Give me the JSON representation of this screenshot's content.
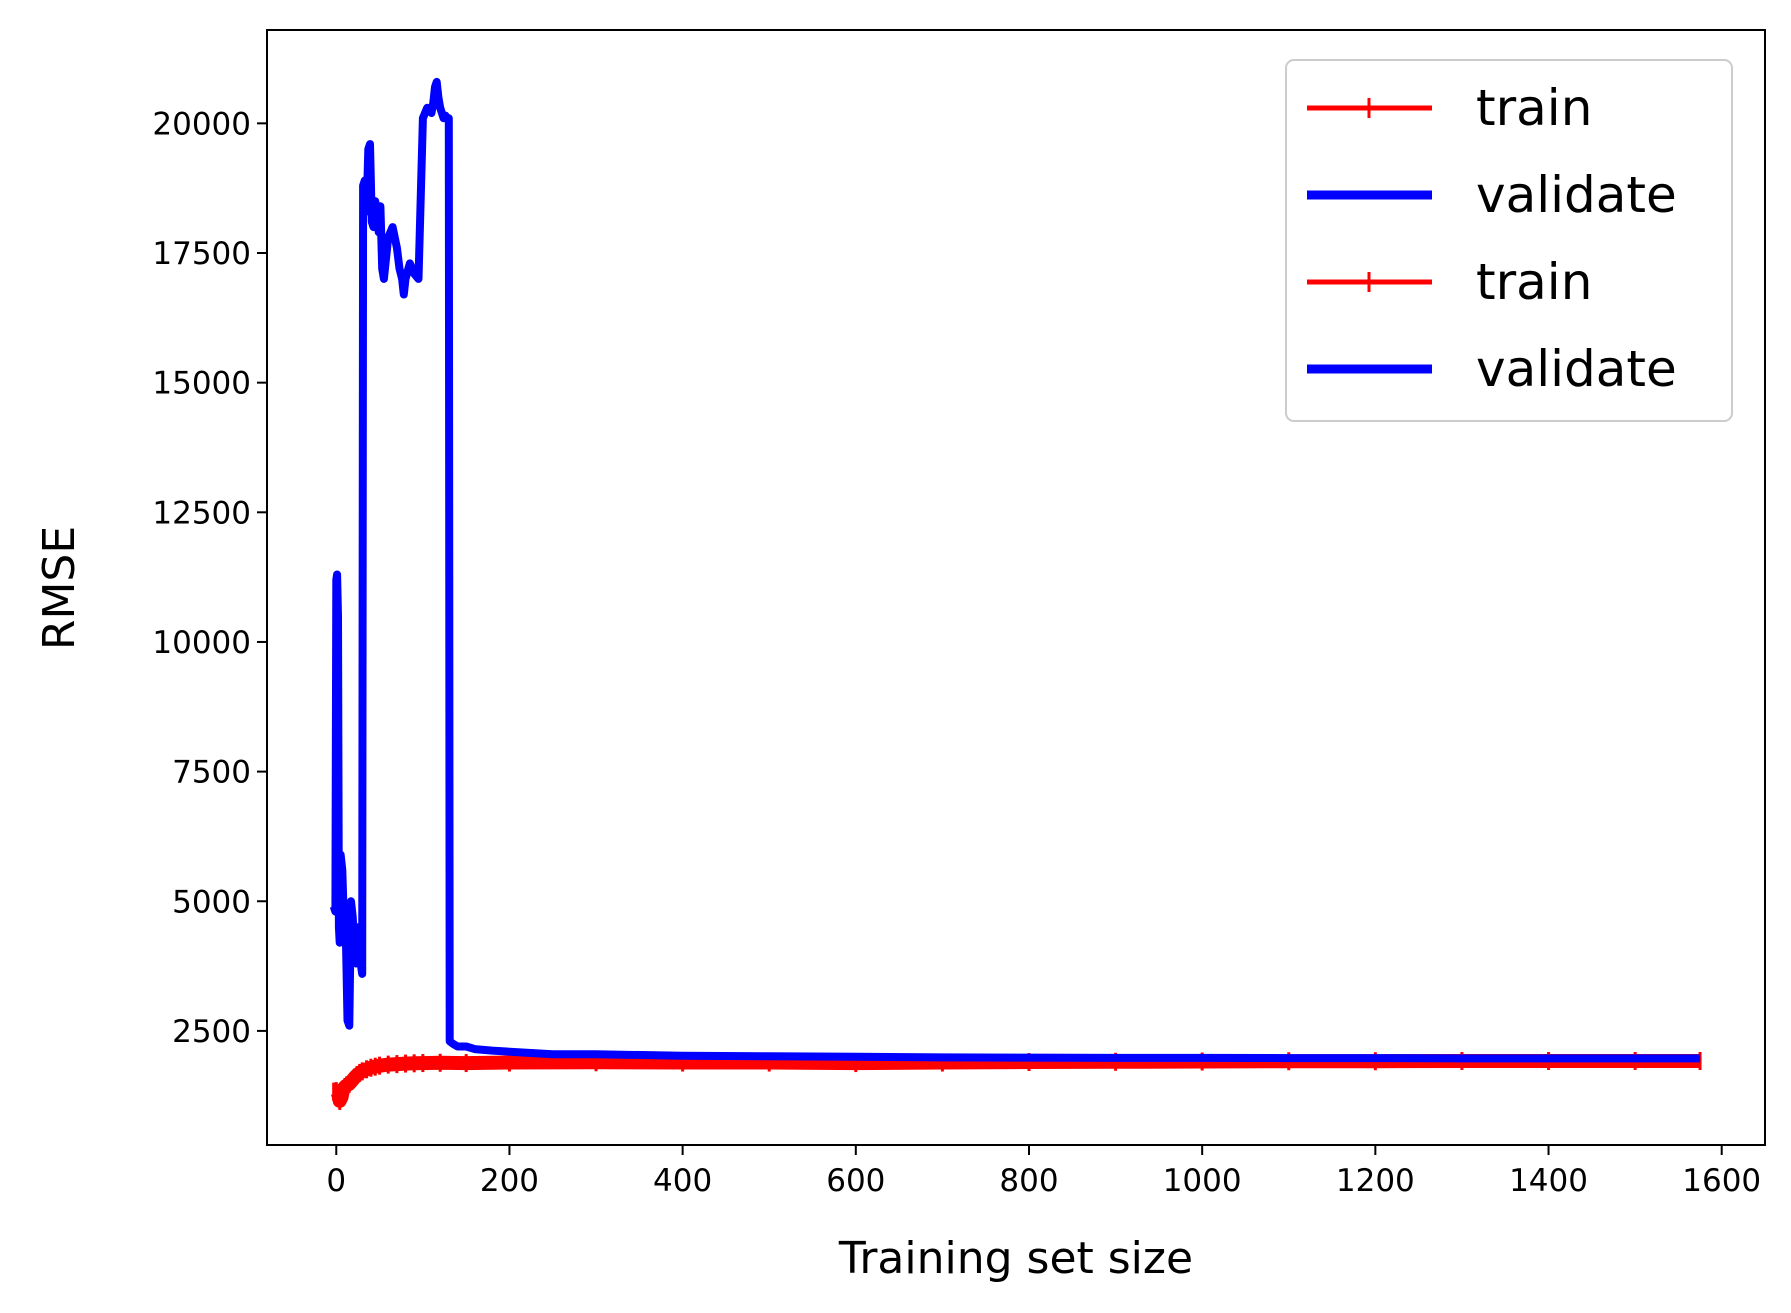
{
  "chart_data": {
    "type": "line",
    "xlabel": "Training set size",
    "ylabel": "RMSE",
    "xlim": [
      -80,
      1650
    ],
    "ylim": [
      300,
      21800
    ],
    "x_ticks": [
      0,
      200,
      400,
      600,
      800,
      1000,
      1200,
      1400,
      1600
    ],
    "y_ticks": [
      2500,
      5000,
      7500,
      10000,
      12500,
      15000,
      17500,
      20000
    ],
    "legend_position": "top-right",
    "series": [
      {
        "name": "train",
        "color": "#ff0000",
        "style": "line-plus",
        "points": [
          [
            -3,
            1330
          ],
          [
            0,
            1340
          ],
          [
            2,
            1300
          ],
          [
            4,
            1150
          ],
          [
            6,
            1220
          ],
          [
            8,
            1380
          ],
          [
            10,
            1420
          ],
          [
            12,
            1450
          ],
          [
            15,
            1480
          ],
          [
            18,
            1540
          ],
          [
            21,
            1600
          ],
          [
            24,
            1650
          ],
          [
            27,
            1690
          ],
          [
            30,
            1720
          ],
          [
            35,
            1760
          ],
          [
            40,
            1790
          ],
          [
            45,
            1810
          ],
          [
            50,
            1830
          ],
          [
            60,
            1850
          ],
          [
            70,
            1860
          ],
          [
            80,
            1870
          ],
          [
            90,
            1875
          ],
          [
            100,
            1880
          ],
          [
            120,
            1885
          ],
          [
            150,
            1880
          ],
          [
            200,
            1890
          ],
          [
            300,
            1895
          ],
          [
            400,
            1890
          ],
          [
            500,
            1890
          ],
          [
            600,
            1880
          ],
          [
            700,
            1890
          ],
          [
            800,
            1900
          ],
          [
            900,
            1905
          ],
          [
            1000,
            1910
          ],
          [
            1100,
            1915
          ],
          [
            1200,
            1915
          ],
          [
            1300,
            1920
          ],
          [
            1400,
            1920
          ],
          [
            1500,
            1920
          ],
          [
            1575,
            1920
          ]
        ]
      },
      {
        "name": "validate",
        "color": "#0000ff",
        "style": "line",
        "points": [
          [
            -3,
            4900
          ],
          [
            -1,
            4800
          ],
          [
            0,
            11200
          ],
          [
            1,
            11300
          ],
          [
            2,
            10500
          ],
          [
            3,
            4500
          ],
          [
            4,
            4200
          ],
          [
            5,
            5900
          ],
          [
            7,
            5600
          ],
          [
            9,
            4500
          ],
          [
            11,
            4400
          ],
          [
            13,
            2700
          ],
          [
            15,
            2600
          ],
          [
            17,
            5000
          ],
          [
            19,
            4700
          ],
          [
            21,
            4000
          ],
          [
            23,
            3800
          ],
          [
            25,
            4500
          ],
          [
            27,
            4200
          ],
          [
            29,
            3700
          ],
          [
            30,
            3600
          ],
          [
            31,
            18800
          ],
          [
            33,
            18900
          ],
          [
            35,
            18300
          ],
          [
            37,
            19500
          ],
          [
            39,
            19600
          ],
          [
            41,
            18100
          ],
          [
            43,
            18000
          ],
          [
            45,
            18500
          ],
          [
            47,
            18200
          ],
          [
            49,
            17900
          ],
          [
            51,
            18400
          ],
          [
            53,
            17200
          ],
          [
            55,
            17000
          ],
          [
            60,
            17800
          ],
          [
            65,
            18000
          ],
          [
            70,
            17600
          ],
          [
            73,
            17200
          ],
          [
            76,
            17000
          ],
          [
            78,
            16700
          ],
          [
            80,
            17000
          ],
          [
            85,
            17300
          ],
          [
            90,
            17100
          ],
          [
            95,
            17000
          ],
          [
            100,
            20100
          ],
          [
            105,
            20300
          ],
          [
            110,
            20200
          ],
          [
            112,
            20400
          ],
          [
            114,
            20700
          ],
          [
            116,
            20800
          ],
          [
            118,
            20500
          ],
          [
            120,
            20300
          ],
          [
            122,
            20200
          ],
          [
            124,
            20100
          ],
          [
            126,
            20150
          ],
          [
            128,
            20100
          ],
          [
            130,
            20100
          ],
          [
            131,
            2300
          ],
          [
            135,
            2250
          ],
          [
            140,
            2200
          ],
          [
            150,
            2200
          ],
          [
            160,
            2150
          ],
          [
            180,
            2120
          ],
          [
            200,
            2100
          ],
          [
            250,
            2050
          ],
          [
            300,
            2050
          ],
          [
            400,
            2020
          ],
          [
            500,
            2010
          ],
          [
            600,
            2000
          ],
          [
            700,
            1990
          ],
          [
            800,
            1985
          ],
          [
            900,
            1980
          ],
          [
            1000,
            1980
          ],
          [
            1100,
            1975
          ],
          [
            1200,
            1975
          ],
          [
            1300,
            1970
          ],
          [
            1400,
            1970
          ],
          [
            1500,
            1970
          ],
          [
            1575,
            1970
          ]
        ]
      }
    ],
    "legend": [
      {
        "label": "train",
        "color": "#ff0000",
        "style": "line-plus"
      },
      {
        "label": "validate",
        "color": "#0000ff",
        "style": "line"
      },
      {
        "label": "train",
        "color": "#ff0000",
        "style": "line-plus"
      },
      {
        "label": "validate",
        "color": "#0000ff",
        "style": "line"
      }
    ]
  }
}
